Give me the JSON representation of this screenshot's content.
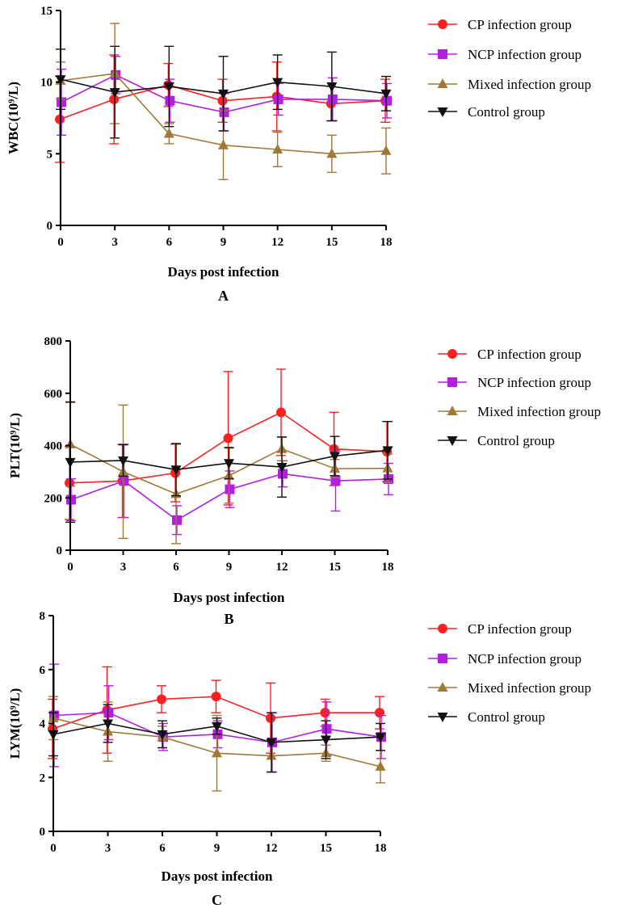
{
  "figure": {
    "panel_labels": [
      "A",
      "B",
      "C"
    ]
  },
  "colors": {
    "CP": "#ff1f1f",
    "NCP": "#b21fe0",
    "Mixed": "#a07838",
    "Control": "#111111"
  },
  "chart_data": [
    {
      "type": "line",
      "panel": "A",
      "xlabel": "Days post infection",
      "ylabel": "WBC(10⁹/L)",
      "x": [
        0,
        3,
        6,
        9,
        12,
        15,
        18
      ],
      "xlim": [
        0,
        18
      ],
      "ylim": [
        0,
        15
      ],
      "yticks": [
        0,
        5,
        10,
        15
      ],
      "legend": "right",
      "series": [
        {
          "name": "CP infection group",
          "key": "CP",
          "marker": "circle",
          "values": [
            7.4,
            8.8,
            9.8,
            8.7,
            9.0,
            8.5,
            8.7
          ],
          "errors": [
            3.0,
            3.1,
            1.5,
            1.5,
            2.4,
            1.2,
            1.5
          ]
        },
        {
          "name": "NCP infection group",
          "key": "NCP",
          "marker": "square",
          "values": [
            8.6,
            10.5,
            8.7,
            7.9,
            8.8,
            8.8,
            8.7
          ],
          "errors": [
            2.3,
            1.3,
            1.5,
            1.3,
            1.1,
            1.5,
            1.2
          ]
        },
        {
          "name": "Mixed infection group",
          "key": "Mixed",
          "marker": "triangle-up",
          "values": [
            10.1,
            10.6,
            6.4,
            5.6,
            5.3,
            5.0,
            5.2
          ],
          "errors": [
            1.3,
            3.5,
            0.7,
            2.4,
            1.2,
            1.3,
            1.6
          ]
        },
        {
          "name": "Control group",
          "key": "Control",
          "marker": "triangle-down",
          "values": [
            10.2,
            9.3,
            9.7,
            9.2,
            10.0,
            9.7,
            9.2
          ],
          "errors": [
            2.1,
            3.2,
            2.8,
            2.6,
            1.9,
            2.4,
            1.2
          ]
        }
      ]
    },
    {
      "type": "line",
      "panel": "B",
      "xlabel": "Days post infection",
      "ylabel": "PLT(10⁹/L)",
      "x": [
        0,
        3,
        6,
        9,
        12,
        15,
        18
      ],
      "xlim": [
        0,
        18
      ],
      "ylim": [
        0,
        800
      ],
      "yticks": [
        0,
        200,
        400,
        600,
        800
      ],
      "legend": "right",
      "series": [
        {
          "name": "CP infection group",
          "key": "CP",
          "marker": "circle",
          "values": [
            257,
            265,
            295,
            428,
            527,
            387,
            377
          ],
          "errors": [
            140,
            140,
            110,
            255,
            165,
            140,
            115
          ]
        },
        {
          "name": "NCP infection group",
          "key": "NCP",
          "marker": "square",
          "values": [
            193,
            265,
            115,
            233,
            292,
            265,
            272
          ],
          "errors": [
            80,
            140,
            55,
            70,
            50,
            115,
            60
          ]
        },
        {
          "name": "Mixed infection group",
          "key": "Mixed",
          "marker": "triangle-up",
          "values": [
            405,
            300,
            215,
            285,
            387,
            312,
            313
          ],
          "errors": [
            160,
            255,
            190,
            105,
            45,
            35,
            55
          ]
        },
        {
          "name": "Control group",
          "key": "Control",
          "marker": "triangle-down",
          "values": [
            337,
            343,
            308,
            333,
            318,
            360,
            382
          ],
          "errors": [
            230,
            60,
            100,
            60,
            115,
            75,
            110
          ]
        }
      ]
    },
    {
      "type": "line",
      "panel": "C",
      "xlabel": "Days post infection",
      "ylabel": "LYM(10⁹/L)",
      "x": [
        0,
        3,
        6,
        9,
        12,
        15,
        18
      ],
      "xlim": [
        0,
        18
      ],
      "ylim": [
        0,
        8
      ],
      "yticks": [
        0,
        2,
        4,
        6,
        8
      ],
      "legend": "right",
      "series": [
        {
          "name": "CP infection group",
          "key": "CP",
          "marker": "circle",
          "values": [
            3.8,
            4.5,
            4.9,
            5.0,
            4.2,
            4.4,
            4.4
          ],
          "errors": [
            1.1,
            1.6,
            0.5,
            0.6,
            1.3,
            0.5,
            0.6
          ]
        },
        {
          "name": "NCP infection group",
          "key": "NCP",
          "marker": "square",
          "values": [
            4.3,
            4.4,
            3.5,
            3.6,
            3.3,
            3.8,
            3.5
          ],
          "errors": [
            1.9,
            1.0,
            0.5,
            0.5,
            1.1,
            1.0,
            0.8
          ]
        },
        {
          "name": "Mixed infection group",
          "key": "Mixed",
          "marker": "triangle-up",
          "values": [
            4.2,
            3.7,
            3.5,
            2.9,
            2.8,
            2.9,
            2.4
          ],
          "errors": [
            0.8,
            1.1,
            0.4,
            1.4,
            0.6,
            0.3,
            0.6
          ]
        },
        {
          "name": "Control group",
          "key": "Control",
          "marker": "triangle-down",
          "values": [
            3.6,
            4.0,
            3.6,
            3.9,
            3.3,
            3.4,
            3.5
          ],
          "errors": [
            0.8,
            0.7,
            0.5,
            0.3,
            1.1,
            0.7,
            0.5
          ]
        }
      ]
    }
  ]
}
